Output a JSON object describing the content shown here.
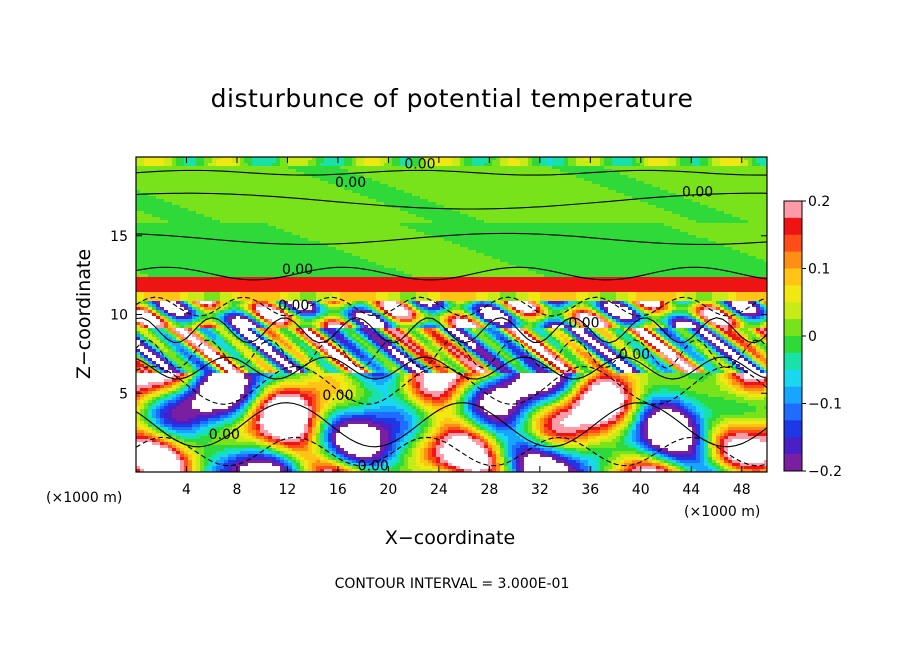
{
  "chart_data": {
    "type": "heatmap",
    "title": "disturbunce of potential temperature",
    "xlabel": "X−coordinate",
    "ylabel": "Z−coordinate",
    "x_unit": "(×1000 m)",
    "xlim": [
      0,
      50
    ],
    "ylim": [
      0,
      20
    ],
    "x_ticks": [
      4,
      8,
      12,
      16,
      20,
      24,
      28,
      32,
      36,
      40,
      44,
      48
    ],
    "y_ticks": [
      5,
      10,
      15
    ],
    "colorbar": {
      "range": [
        -0.2,
        0.2
      ],
      "tick_labels": [
        "0.2",
        "0.1",
        "0",
        "−0.1",
        "−0.2"
      ],
      "tick_values": [
        0.2,
        0.1,
        0,
        -0.1,
        -0.2
      ],
      "colors": [
        "#7a1fa0",
        "#4a1fc8",
        "#1f38e6",
        "#1f6cff",
        "#17a6ff",
        "#19d7ee",
        "#18e2a8",
        "#2fd93a",
        "#78e21b",
        "#c8ea17",
        "#f0e813",
        "#ffc414",
        "#ff8f14",
        "#ff4d19",
        "#ee1414",
        "#ff9aa8"
      ]
    },
    "contour_labels": [
      {
        "text": "0.00",
        "x": 22.5,
        "y": 19.6
      },
      {
        "text": "0.00",
        "x": 17.0,
        "y": 18.4
      },
      {
        "text": "0.00",
        "x": 44.5,
        "y": 17.8
      },
      {
        "text": "0.00",
        "x": 12.8,
        "y": 12.9
      },
      {
        "text": "0.00",
        "x": 12.5,
        "y": 10.6
      },
      {
        "text": "0.00",
        "x": 35.5,
        "y": 9.5
      },
      {
        "text": "0.00",
        "x": 39.5,
        "y": 7.5
      },
      {
        "text": "0.00",
        "x": 16.0,
        "y": 4.9
      },
      {
        "text": "0.00",
        "x": 7.0,
        "y": 2.4
      },
      {
        "text": "0.00",
        "x": 18.8,
        "y": 0.4
      }
    ],
    "contour_interval": "3.000E-01",
    "grid": false
  },
  "labels": {
    "contour_note": "CONTOUR INTERVAL = 3.000E-01",
    "xunit_left": "(×1000 m)",
    "xunit_right": "(×1000 m)"
  }
}
